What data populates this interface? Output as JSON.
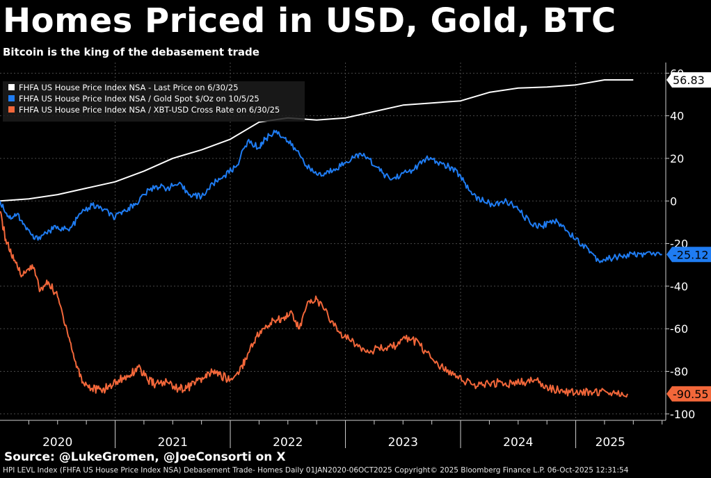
{
  "header": {
    "title": "Homes Priced in USD, Gold, BTC",
    "subtitle": "Bitcoin is the king of the debasement trade"
  },
  "footer": {
    "source": "Source: @LukeGromen, @JoeConsorti on X",
    "fine_print": "HPI LEVL Index (FHFA US House Price Index NSA) Debasement Trade- Homes Daily 01JAN2020-06OCT2025 Copyright© 2025 Bloomberg Finance L.P. 06-Oct-2025 12:31:54"
  },
  "chart_data": {
    "type": "line",
    "title": "Homes Priced in USD, Gold, BTC",
    "xlabel": "",
    "ylabel": "",
    "xlim": [
      2020.0,
      2025.77
    ],
    "ylim": [
      -103,
      65
    ],
    "y_axis_side": "right",
    "y_ticks": [
      60,
      40,
      20,
      0,
      -20,
      -40,
      -60,
      -80,
      -100
    ],
    "y_tick_labels": [
      "60",
      "40",
      "20",
      "0",
      "-20",
      "-40",
      "-60",
      "-80",
      "-100"
    ],
    "x_tick_labels": [
      "2020",
      "2021",
      "2022",
      "2023",
      "2024",
      "2025"
    ],
    "x_label_positions": [
      2020.5,
      2021.5,
      2022.5,
      2023.5,
      2024.5,
      2025.3
    ],
    "x_major_ticks": [
      2021.0,
      2022.0,
      2023.0,
      2024.0,
      2025.0
    ],
    "legend_placement": "top-left",
    "series": [
      {
        "name": "FHFA US House Price Index NSA - Last Price on 6/30/25",
        "color": "#ffffff",
        "last_value": 56.83,
        "last_label": "56.83",
        "x": [
          2020.0,
          2020.25,
          2020.5,
          2020.75,
          2021.0,
          2021.25,
          2021.5,
          2021.75,
          2022.0,
          2022.25,
          2022.5,
          2022.75,
          2023.0,
          2023.25,
          2023.5,
          2023.75,
          2024.0,
          2024.25,
          2024.5,
          2024.75,
          2025.0,
          2025.25,
          2025.5
        ],
        "y": [
          0,
          1,
          3,
          6,
          9,
          14,
          20,
          24,
          29,
          37,
          39,
          38,
          39,
          42,
          45,
          46,
          47,
          51,
          53,
          53.5,
          54.5,
          56.83,
          56.83
        ]
      },
      {
        "name": "FHFA US House Price Index NSA / Gold Spot $/Oz on 10/5/25",
        "color": "#1f7cf2",
        "last_value": -25.12,
        "last_label": "-25.12",
        "x": [
          2020.0,
          2020.08,
          2020.15,
          2020.22,
          2020.3,
          2020.4,
          2020.5,
          2020.6,
          2020.7,
          2020.8,
          2020.9,
          2021.0,
          2021.08,
          2021.17,
          2021.25,
          2021.35,
          2021.45,
          2021.55,
          2021.65,
          2021.75,
          2021.85,
          2021.95,
          2022.05,
          2022.15,
          2022.25,
          2022.3,
          2022.4,
          2022.5,
          2022.6,
          2022.7,
          2022.8,
          2022.9,
          2023.0,
          2023.1,
          2023.2,
          2023.3,
          2023.4,
          2023.5,
          2023.6,
          2023.7,
          2023.8,
          2023.9,
          2024.0,
          2024.1,
          2024.2,
          2024.3,
          2024.4,
          2024.5,
          2024.6,
          2024.7,
          2024.8,
          2024.9,
          2025.0,
          2025.1,
          2025.2,
          2025.3,
          2025.4,
          2025.5,
          2025.6,
          2025.75
        ],
        "y": [
          0,
          -8,
          -6,
          -12,
          -18,
          -15,
          -12,
          -14,
          -6,
          -2,
          -4,
          -8,
          -4,
          -2,
          3,
          7,
          6,
          8,
          3,
          2,
          8,
          12,
          16,
          28,
          25,
          29,
          33,
          28,
          22,
          14,
          12,
          15,
          18,
          22,
          20,
          14,
          10,
          13,
          15,
          20,
          18,
          16,
          12,
          3,
          0,
          -2,
          0,
          -4,
          -10,
          -12,
          -9,
          -12,
          -18,
          -22,
          -28,
          -27,
          -26,
          -25.12,
          -25.12,
          -25.12
        ]
      },
      {
        "name": "FHFA US House Price Index NSA / XBT-USD Cross Rate on 6/30/25",
        "color": "#f2673a",
        "last_value": -90.55,
        "last_label": "-90.55",
        "x": [
          2020.0,
          2020.05,
          2020.12,
          2020.2,
          2020.28,
          2020.35,
          2020.42,
          2020.5,
          2020.58,
          2020.65,
          2020.72,
          2020.8,
          2020.88,
          2020.95,
          2021.03,
          2021.12,
          2021.2,
          2021.28,
          2021.35,
          2021.45,
          2021.55,
          2021.62,
          2021.7,
          2021.78,
          2021.85,
          2021.92,
          2022.0,
          2022.08,
          2022.15,
          2022.22,
          2022.3,
          2022.38,
          2022.45,
          2022.52,
          2022.6,
          2022.68,
          2022.75,
          2022.85,
          2022.95,
          2023.05,
          2023.15,
          2023.25,
          2023.35,
          2023.45,
          2023.55,
          2023.65,
          2023.75,
          2023.85,
          2023.95,
          2024.05,
          2024.15,
          2024.25,
          2024.35,
          2024.45,
          2024.55,
          2024.65,
          2024.75,
          2024.85,
          2024.95,
          2025.05,
          2025.15,
          2025.25,
          2025.35,
          2025.45
        ],
        "y": [
          -5,
          -18,
          -28,
          -35,
          -30,
          -42,
          -38,
          -45,
          -60,
          -75,
          -85,
          -88,
          -89,
          -87,
          -84,
          -82,
          -78,
          -84,
          -86,
          -85,
          -88,
          -88,
          -85,
          -83,
          -80,
          -82,
          -84,
          -80,
          -72,
          -64,
          -60,
          -56,
          -55,
          -52,
          -60,
          -47,
          -46,
          -54,
          -62,
          -66,
          -69,
          -70,
          -69,
          -68,
          -64,
          -68,
          -74,
          -79,
          -81,
          -85,
          -87,
          -86,
          -85,
          -86,
          -85,
          -84,
          -87,
          -89,
          -90,
          -89.5,
          -90,
          -89,
          -90,
          -90.55
        ]
      }
    ]
  }
}
